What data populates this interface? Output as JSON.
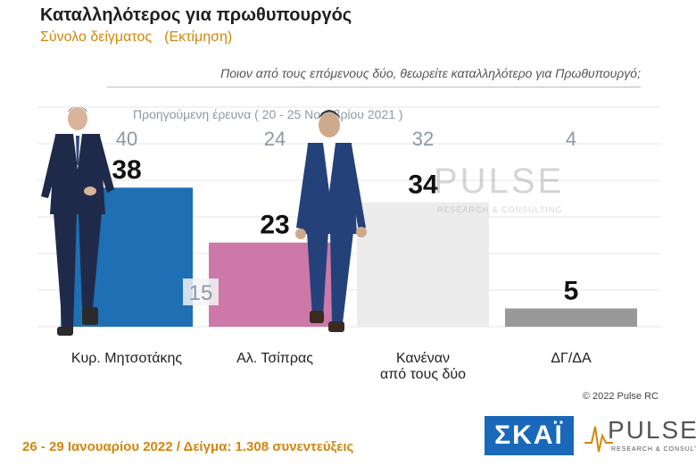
{
  "header": {
    "title": "Καταλληλότερος για πρωθυπουργός",
    "subtitle": "Σύνολο δείγματος",
    "estimate": "(Εκτίμηση)"
  },
  "question": "Ποιον από τους επόμενους δύο, θεωρείτε καταλληλότερο για Πρωθυπουργό;",
  "previous_label": "Προηγούμενη έρευνα ( 20 - 25 Νοεμβρίου 2021 )",
  "chart_data": {
    "type": "bar",
    "categories": [
      "Κυρ. Μητσοτάκης",
      "Αλ. Τσίπρας",
      "Κανέναν από τους δύο",
      "ΔΓ/ΔΑ"
    ],
    "category_lines": [
      [
        "Κυρ. Μητσοτάκης"
      ],
      [
        "Αλ. Τσίπρας"
      ],
      [
        "Κανέναν",
        "από τους δύο"
      ],
      [
        "ΔΓ/ΔΑ"
      ]
    ],
    "series": [
      {
        "name": "",
        "values": [
          38,
          23,
          34,
          5
        ],
        "colors": [
          "#1f6fb5",
          "#cc78a8",
          "#ececec",
          "#999999"
        ]
      },
      {
        "name": "Προηγούμενη έρευνα ( 20 - 25 Νοεμβρίου 2021 )",
        "values": [
          40,
          24,
          32,
          4
        ]
      }
    ],
    "difference_label": "15",
    "ylim": [
      0,
      60
    ],
    "grid": true
  },
  "copyright": "© 2022 Pulse RC",
  "footer": "26 - 29 Ιανουαρίου 2022 / Δείγμα: 1.308 συνεντεύξεις",
  "logos": {
    "skai": "ΣΚΑΪ",
    "pulse": "PULSE",
    "pulse_sub": "RESEARCH & CONSULTING",
    "skai_color": "#1a68b9",
    "accent_color": "#d4860b"
  }
}
